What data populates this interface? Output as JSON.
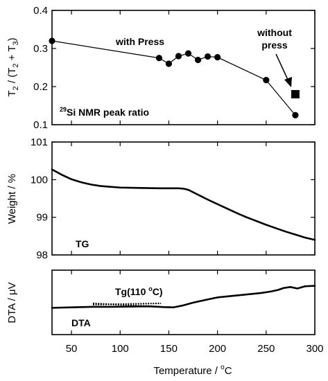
{
  "chart_data": {
    "type": "line",
    "x_axis": {
      "label": "Temperature / °C",
      "label_text": "Temperature / ",
      "label_sup": "o",
      "label_unit": "C",
      "range": [
        30,
        300
      ],
      "ticks": [
        50,
        100,
        150,
        200,
        250,
        300
      ],
      "tick_labels": [
        "50",
        "100",
        "150",
        "200",
        "250",
        "300"
      ]
    },
    "panels": [
      {
        "id": "nmr",
        "ylabel": "T2 / (T2 + T3)",
        "ylim": [
          0.1,
          0.4
        ],
        "yticks": [
          0.1,
          0.2,
          0.3,
          0.4
        ],
        "ytick_labels": [
          "0.1",
          "0.2",
          "0.3",
          "0.4"
        ],
        "panel_label": "29Si NMR peak ratio",
        "panel_label_sup": "29",
        "panel_label_text": "Si NMR peak ratio",
        "series": [
          {
            "name": "with Press",
            "marker": "circle",
            "x": [
              30,
              140,
              150,
              160,
              170,
              180,
              190,
              200,
              250,
              280
            ],
            "y": [
              0.32,
              0.275,
              0.26,
              0.28,
              0.287,
              0.27,
              0.279,
              0.277,
              0.217,
              0.125
            ]
          },
          {
            "name": "without press",
            "name_line1": "without",
            "name_line2": "press",
            "marker": "square",
            "x": [
              280
            ],
            "y": [
              0.18
            ]
          }
        ]
      },
      {
        "id": "tg",
        "ylabel": "Weight / %",
        "ylim": [
          98,
          101
        ],
        "yticks": [
          98,
          99,
          100,
          101
        ],
        "ytick_labels": [
          "98",
          "99",
          "100",
          "101"
        ],
        "panel_label": "TG",
        "curve": {
          "x": [
            30,
            40,
            50,
            60,
            70,
            80,
            90,
            100,
            120,
            140,
            160,
            165,
            170,
            180,
            190,
            200,
            210,
            220,
            230,
            240,
            250,
            260,
            270,
            280,
            290,
            300
          ],
          "y": [
            100.27,
            100.13,
            100.01,
            99.93,
            99.87,
            99.83,
            99.81,
            99.79,
            99.78,
            99.77,
            99.77,
            99.76,
            99.73,
            99.6,
            99.47,
            99.35,
            99.23,
            99.11,
            99.0,
            98.9,
            98.8,
            98.71,
            98.62,
            98.54,
            98.46,
            98.4
          ]
        }
      },
      {
        "id": "dta",
        "ylabel": "DTA / μV",
        "panel_label": "DTA",
        "annotation": "Tg(110 °C)",
        "annotation_text": "Tg(110 ",
        "annotation_sup": "o",
        "annotation_tail": "C)",
        "curve": {
          "x": [
            30,
            50,
            70,
            90,
            110,
            130,
            145,
            155,
            165,
            175,
            190,
            200,
            215,
            230,
            245,
            255,
            262,
            268,
            275,
            282,
            290,
            300
          ],
          "y": [
            0.08,
            0.1,
            0.12,
            0.12,
            0.13,
            0.14,
            0.11,
            0.1,
            0.18,
            0.29,
            0.42,
            0.5,
            0.56,
            0.62,
            0.68,
            0.74,
            0.8,
            0.88,
            0.92,
            0.86,
            0.95,
            0.97
          ]
        },
        "tangent_lines": [
          {
            "x": [
              72,
              140
            ],
            "y": [
              0.26,
              0.12
            ]
          },
          {
            "x": [
              72,
              142
            ],
            "y": [
              0.21,
              0.26
            ]
          }
        ]
      }
    ]
  }
}
